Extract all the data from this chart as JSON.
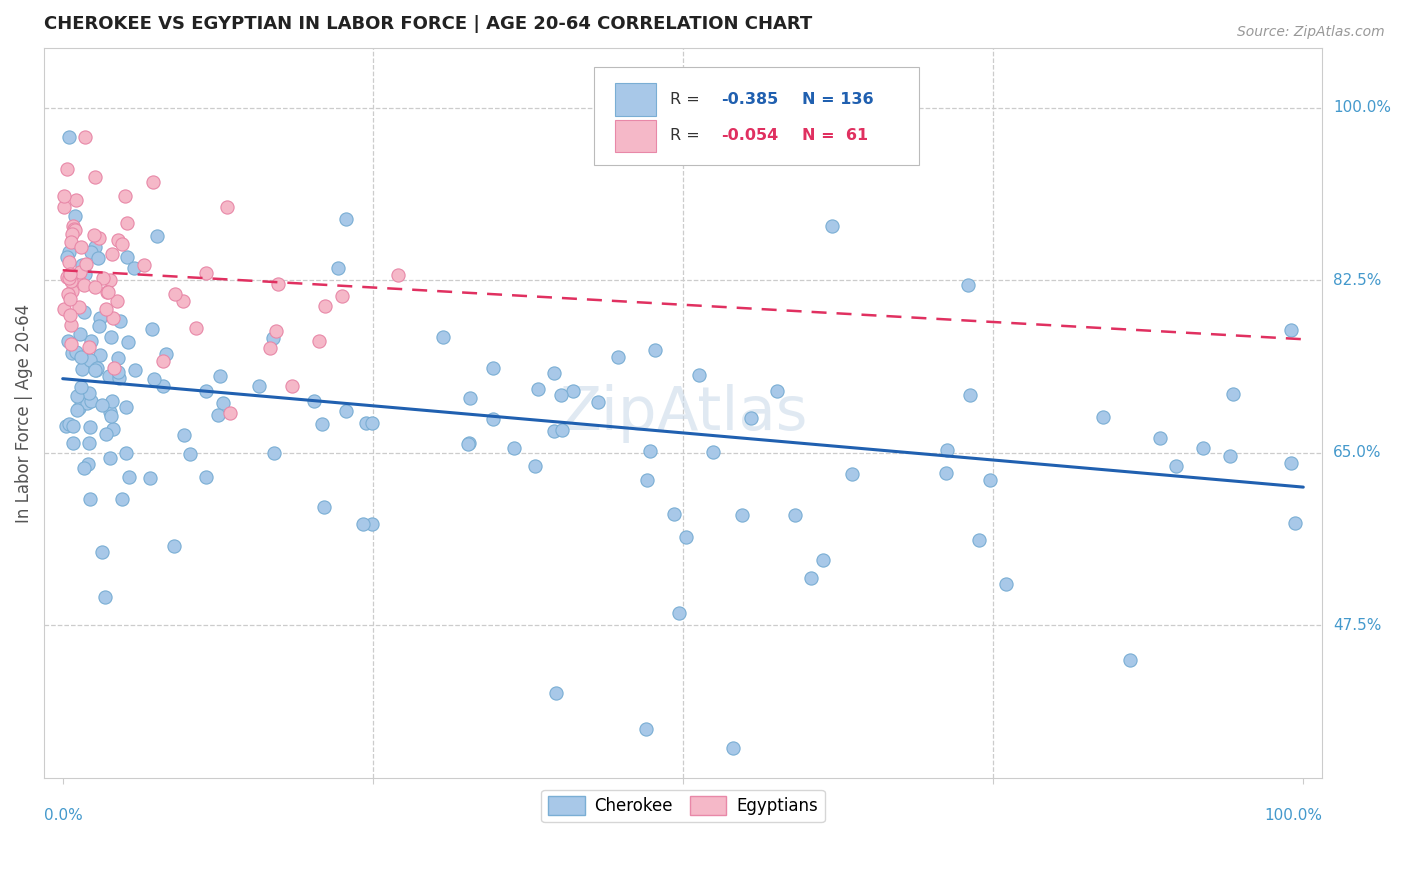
{
  "title": "CHEROKEE VS EGYPTIAN IN LABOR FORCE | AGE 20-64 CORRELATION CHART",
  "source": "Source: ZipAtlas.com",
  "ylabel": "In Labor Force | Age 20-64",
  "cherokee_R": -0.385,
  "cherokee_N": 136,
  "egyptian_R": -0.054,
  "egyptian_N": 61,
  "cherokee_color": "#a8c8e8",
  "cherokee_edge": "#7aaed4",
  "egyptian_color": "#f5b8c8",
  "egyptian_edge": "#e888a8",
  "cherokee_line_color": "#2060b0",
  "egyptian_line_color": "#e03060",
  "background_color": "#ffffff",
  "grid_color": "#cccccc",
  "right_label_color": "#4499cc",
  "title_color": "#222222",
  "ylabel_color": "#555555",
  "source_color": "#999999",
  "legend_text_color": "#333333",
  "ylim_min": 0.32,
  "ylim_max": 1.06,
  "xlim_min": -0.015,
  "xlim_max": 1.015,
  "marker_size": 90,
  "cherokee_line_y0": 0.725,
  "cherokee_line_y1": 0.615,
  "egyptian_line_y0": 0.835,
  "egyptian_line_y1": 0.765
}
